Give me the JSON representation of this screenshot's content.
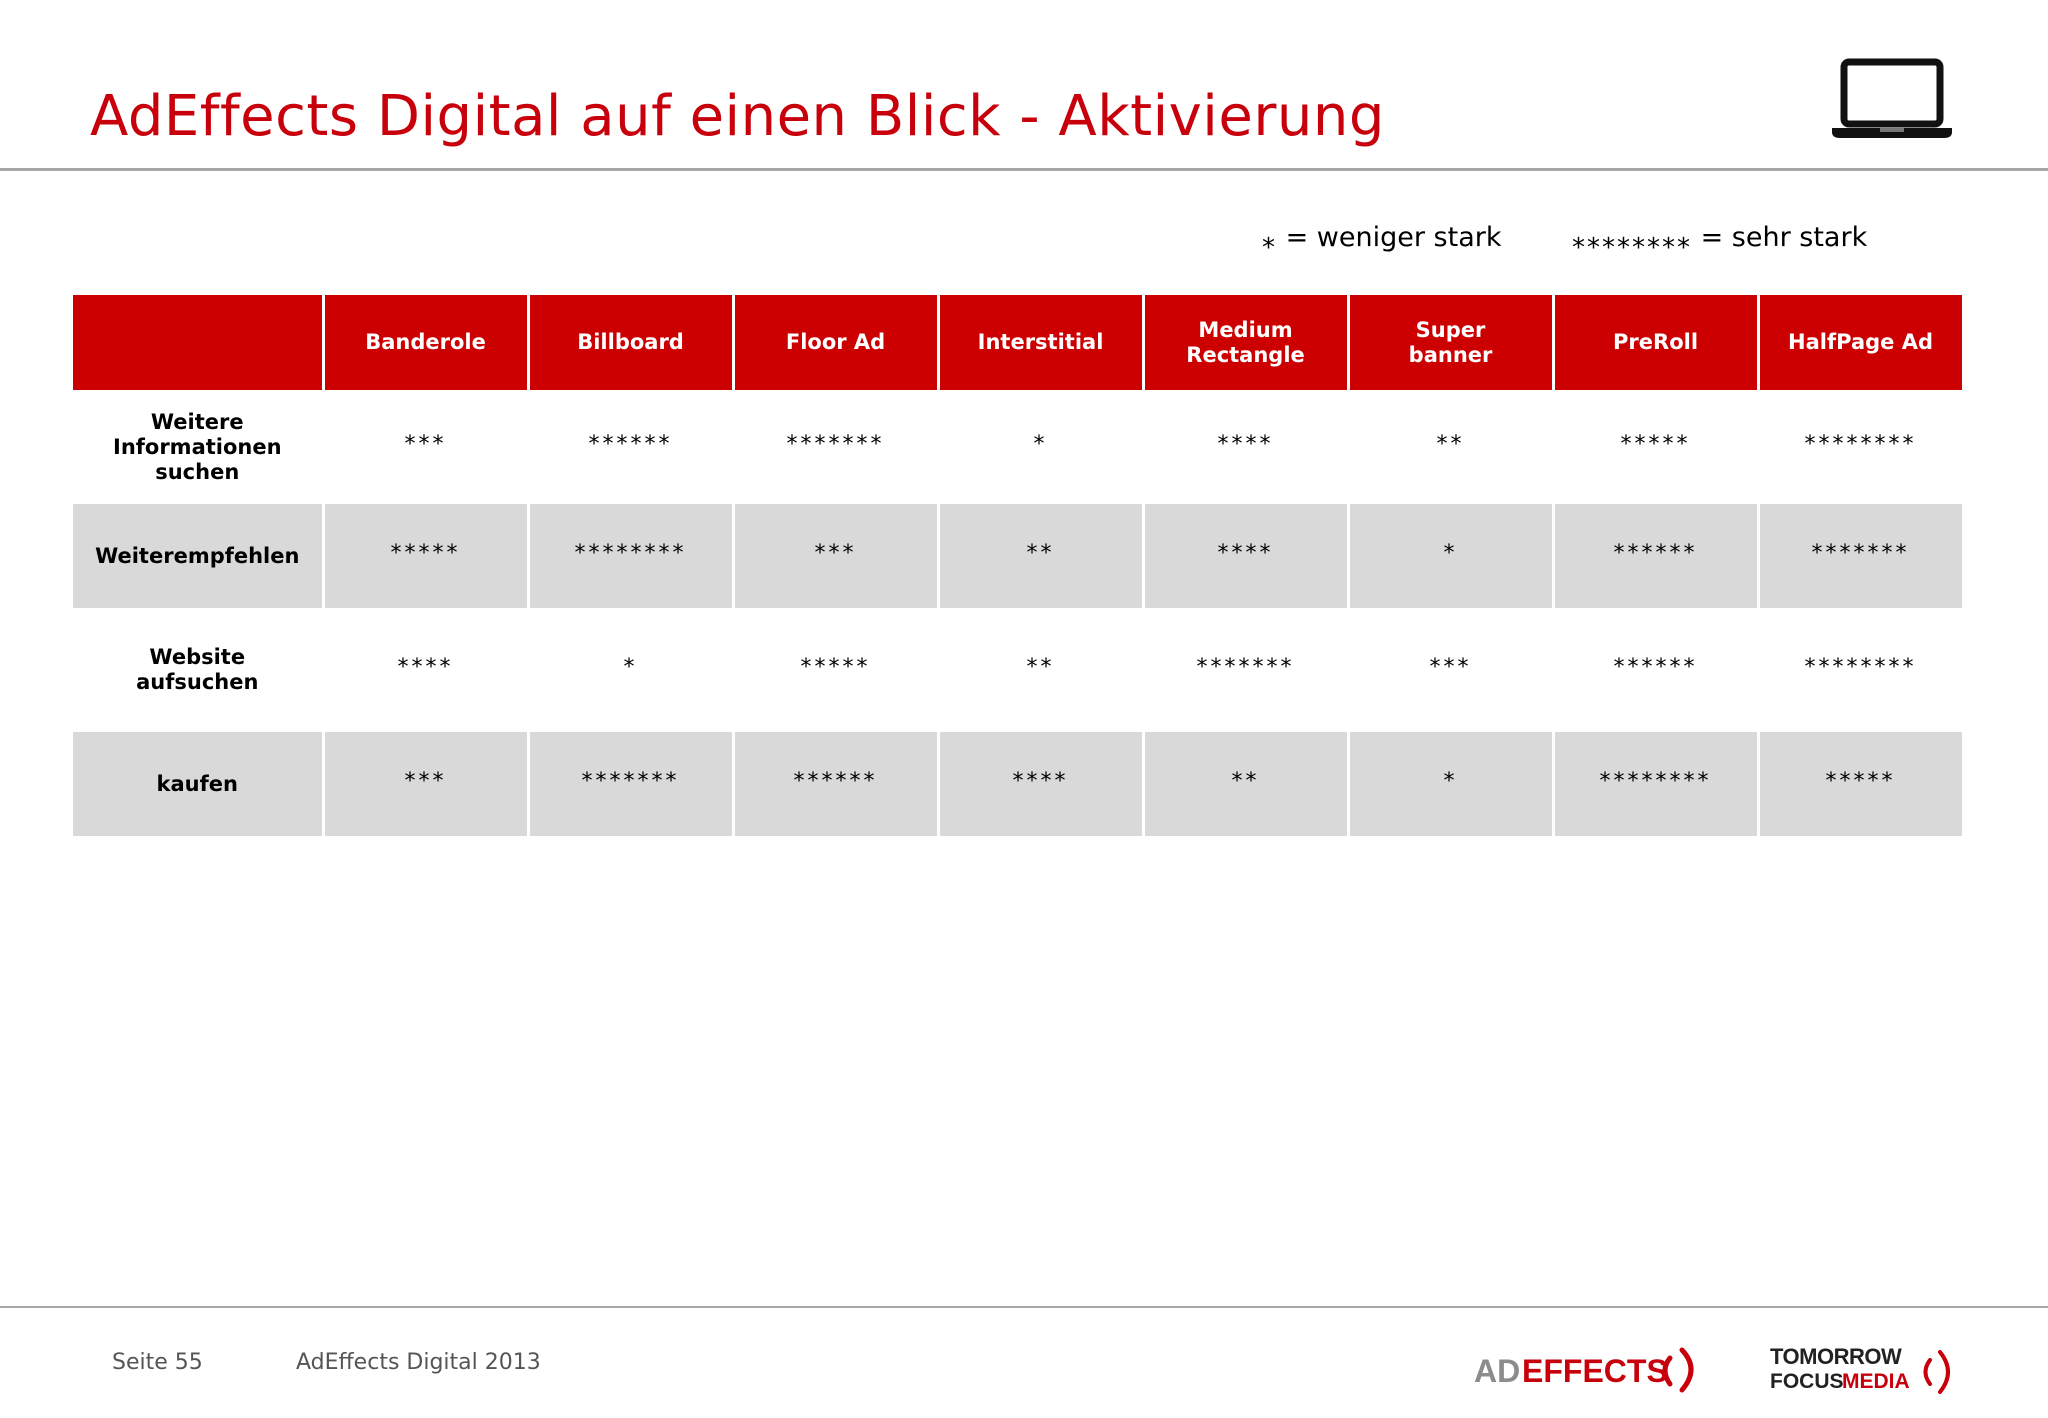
{
  "title": "AdEffects Digital auf einen Blick - Aktivierung",
  "legend": {
    "low_symbol": "*",
    "low_label": "= weniger stark",
    "high_symbol": "********",
    "high_label": "= sehr stark"
  },
  "table": {
    "columns": [
      "Banderole",
      "Billboard",
      "Floor Ad",
      "Interstitial",
      "Medium Rectangle",
      "Super banner",
      "PreRoll",
      "HalfPage Ad"
    ],
    "rows": [
      {
        "label": "Weitere Informationen suchen",
        "values": [
          "***",
          "******",
          "*******",
          "*",
          "****",
          "**",
          "*****",
          "********"
        ]
      },
      {
        "label": "Weiterempfehlen",
        "values": [
          "*****",
          "********",
          "***",
          "**",
          "****",
          "*",
          "******",
          "*******"
        ]
      },
      {
        "label": "Website aufsuchen",
        "values": [
          "****",
          "*",
          "*****",
          "**",
          "*******",
          "***",
          "******",
          "********"
        ]
      },
      {
        "label": "kaufen",
        "values": [
          "***",
          "*******",
          "******",
          "****",
          "**",
          "*",
          "********",
          "*****"
        ]
      }
    ]
  },
  "footer": {
    "page": "Seite 55",
    "doc": "AdEffects Digital 2013",
    "logo_adeffects": "ADEFFECTS",
    "logo_tfm_line1": "TOMORROW",
    "logo_tfm_line2a": "FOCUS",
    "logo_tfm_line2b": "MEDIA"
  },
  "colors": {
    "accent": "#cc0000",
    "title": "#c8000b",
    "row_alt": "#d9d9d9",
    "rule": "#a6a6a6"
  },
  "icons": [
    "laptop-icon"
  ]
}
